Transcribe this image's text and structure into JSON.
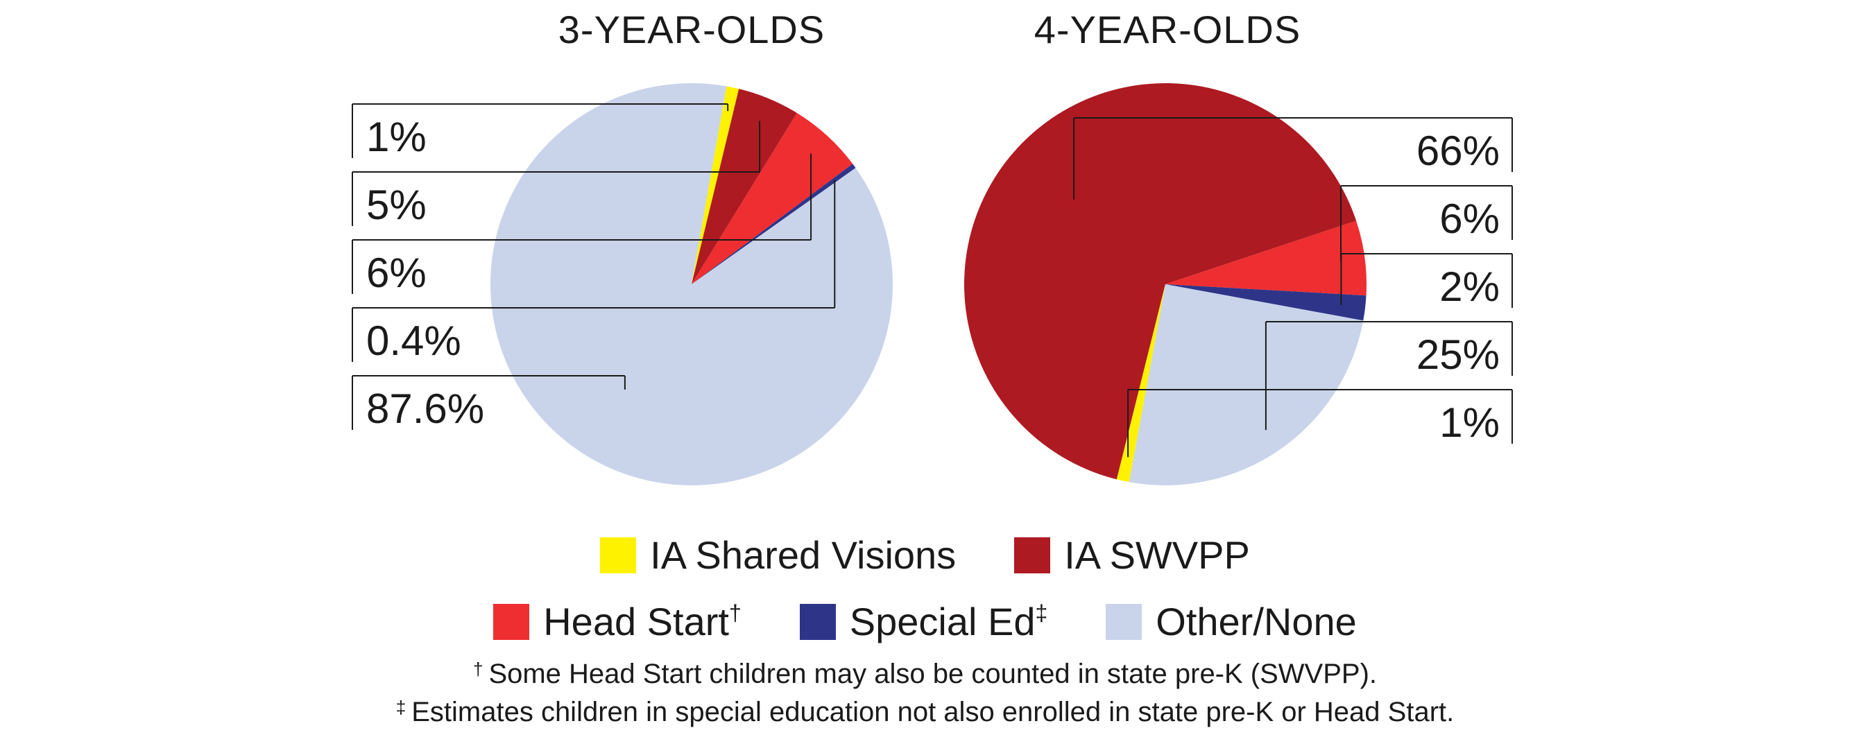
{
  "colors": {
    "ia_shared_visions": "#FFF200",
    "ia_swvpp": "#AE1A22",
    "head_start": "#EE2E31",
    "special_ed": "#2E3589",
    "other_none": "#C9D4EA"
  },
  "legend": {
    "ia_shared_visions": "IA Shared Visions",
    "ia_swvpp": "IA SWVPP",
    "head_start": "Head Start",
    "head_start_mark": "†",
    "special_ed": "Special Ed",
    "special_ed_mark": "‡",
    "other_none": "Other/None"
  },
  "footnotes": {
    "dagger_mark": "†",
    "dagger_text": "Some Head Start children may also be counted in state pre-K (SWVPP).",
    "ddagger_mark": "‡",
    "ddagger_text": "Estimates children in special education not also enrolled in state pre-K or Head Start."
  },
  "chart_data": [
    {
      "type": "pie",
      "title": "3-YEAR-OLDS",
      "labels": [
        "IA Shared Visions",
        "IA SWVPP",
        "Head Start",
        "Special Ed",
        "Other/None"
      ],
      "values": [
        1,
        5,
        6,
        0.4,
        87.6
      ],
      "value_labels": [
        "1%",
        "5%",
        "6%",
        "0.4%",
        "87.6%"
      ]
    },
    {
      "type": "pie",
      "title": "4-YEAR-OLDS",
      "labels": [
        "IA SWVPP",
        "Head Start",
        "Special Ed",
        "Other/None",
        "IA Shared Visions"
      ],
      "values": [
        66,
        6,
        2,
        25,
        1
      ],
      "value_labels": [
        "66%",
        "6%",
        "2%",
        "25%",
        "1%"
      ]
    }
  ]
}
